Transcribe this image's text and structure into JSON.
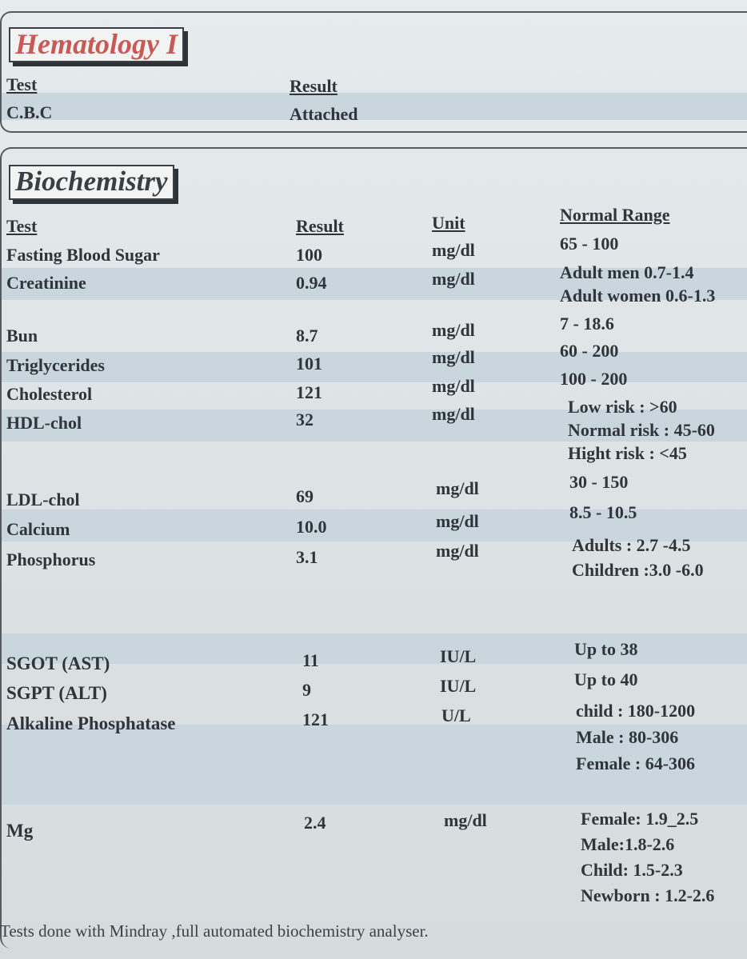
{
  "hematology": {
    "title": "Hematology I",
    "headers": {
      "test": "Test",
      "result": "Result"
    },
    "rows": [
      {
        "test": "C.B.C",
        "result": "Attached"
      }
    ]
  },
  "biochemistry": {
    "title": "Biochemistry",
    "headers": {
      "test": "Test",
      "result": "Result",
      "unit": "Unit",
      "normal": "Normal Range"
    },
    "rows": [
      {
        "test": "Fasting Blood Sugar",
        "result": "100",
        "unit": "mg/dl",
        "normal": [
          "65 - 100"
        ]
      },
      {
        "test": "Creatinine",
        "result": "0.94",
        "unit": "mg/dl",
        "normal": [
          "Adult men 0.7-1.4",
          "Adult women 0.6-1.3"
        ]
      },
      {
        "test": "Bun",
        "result": "8.7",
        "unit": "mg/dl",
        "normal": [
          "7 - 18.6"
        ]
      },
      {
        "test": "Triglycerides",
        "result": "101",
        "unit": "mg/dl",
        "normal": [
          "60 - 200"
        ]
      },
      {
        "test": "Cholesterol",
        "result": "121",
        "unit": "mg/dl",
        "normal": [
          "100 - 200"
        ]
      },
      {
        "test": "HDL-chol",
        "result": "32",
        "unit": "mg/dl",
        "normal": [
          "Low risk : >60",
          "Normal risk : 45-60",
          "Hight risk : <45"
        ]
      },
      {
        "test": "LDL-chol",
        "result": "69",
        "unit": "mg/dl",
        "normal": [
          "30 - 150"
        ]
      },
      {
        "test": "Calcium",
        "result": "10.0",
        "unit": "mg/dl",
        "normal": [
          "8.5 - 10.5"
        ]
      },
      {
        "test": "Phosphorus",
        "result": "3.1",
        "unit": "mg/dl",
        "normal": [
          "Adults : 2.7 -4.5",
          "Children :3.0 -6.0"
        ]
      },
      {
        "test": "SGOT (AST)",
        "result": "11",
        "unit": "IU/L",
        "normal": [
          "Up to 38"
        ]
      },
      {
        "test": "SGPT (ALT)",
        "result": "9",
        "unit": "IU/L",
        "normal": [
          "Up to 40"
        ]
      },
      {
        "test": "Alkaline Phosphatase",
        "result": "121",
        "unit": "U/L",
        "normal": [
          "child : 180-1200",
          "Male : 80-306",
          "Female : 64-306"
        ]
      },
      {
        "test": "Mg",
        "result": "2.4",
        "unit": "mg/dl",
        "normal": [
          "Female: 1.9_2.5",
          "Male:1.8-2.6",
          "Child: 1.5-2.3",
          "Newborn : 1.2-2.6"
        ]
      }
    ]
  },
  "footer": "Tests done with  Mindray ,full  automated  biochemistry analyser."
}
